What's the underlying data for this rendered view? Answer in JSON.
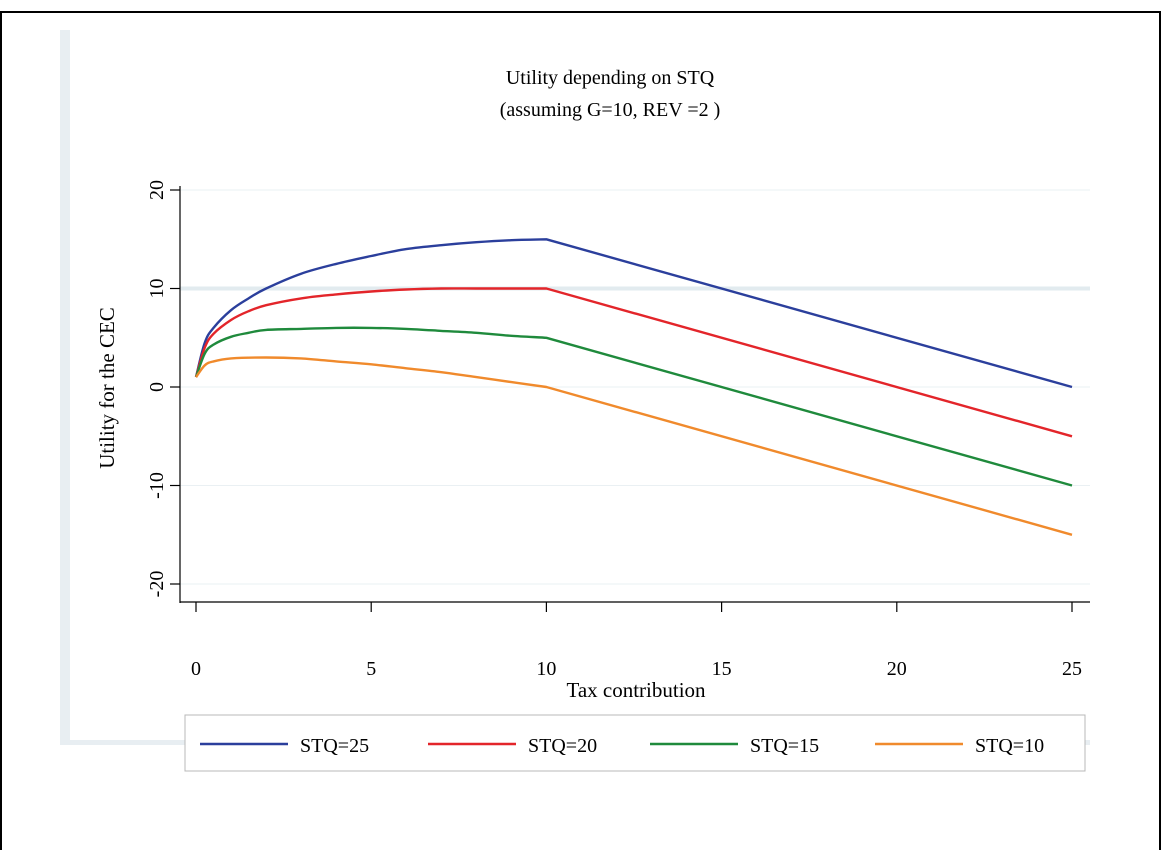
{
  "chart_data": {
    "type": "line",
    "title": "Utility depending on STQ",
    "subtitle": "(assuming G=10, REV =2 )",
    "xlabel": "Tax contribution",
    "ylabel": "Utility for the CEC",
    "xlim": [
      0,
      25
    ],
    "ylim": [
      -20,
      20
    ],
    "xticks": [
      0,
      5,
      10,
      15,
      20,
      25
    ],
    "yticks": [
      -20,
      -10,
      0,
      10,
      20
    ],
    "grid": true,
    "legend_placement": "bottom",
    "series": [
      {
        "name": "STQ=25",
        "color": "#2b3f9c",
        "points": [
          [
            0,
            1
          ],
          [
            0.25,
            4.5
          ],
          [
            0.5,
            6
          ],
          [
            1,
            7.8
          ],
          [
            1.5,
            9
          ],
          [
            2,
            10
          ],
          [
            3,
            11.5
          ],
          [
            4,
            12.5
          ],
          [
            5,
            13.3
          ],
          [
            6,
            14
          ],
          [
            7,
            14.4
          ],
          [
            8,
            14.7
          ],
          [
            9,
            14.9
          ],
          [
            10,
            15
          ],
          [
            25,
            0
          ]
        ]
      },
      {
        "name": "STQ=20",
        "color": "#e3252a",
        "points": [
          [
            0,
            1
          ],
          [
            0.25,
            4
          ],
          [
            0.5,
            5.4
          ],
          [
            1,
            6.8
          ],
          [
            1.5,
            7.7
          ],
          [
            2,
            8.3
          ],
          [
            3,
            9
          ],
          [
            4,
            9.4
          ],
          [
            5,
            9.7
          ],
          [
            6,
            9.9
          ],
          [
            7,
            10
          ],
          [
            8,
            10
          ],
          [
            9,
            10
          ],
          [
            10,
            10
          ],
          [
            25,
            -5
          ]
        ]
      },
      {
        "name": "STQ=15",
        "color": "#1f8a3c",
        "points": [
          [
            0,
            1
          ],
          [
            0.25,
            3.4
          ],
          [
            0.5,
            4.3
          ],
          [
            1,
            5.1
          ],
          [
            1.5,
            5.5
          ],
          [
            2,
            5.8
          ],
          [
            3,
            5.9
          ],
          [
            4,
            6
          ],
          [
            5,
            6
          ],
          [
            6,
            5.9
          ],
          [
            7,
            5.7
          ],
          [
            8,
            5.5
          ],
          [
            9,
            5.2
          ],
          [
            10,
            5
          ],
          [
            25,
            -10
          ]
        ]
      },
      {
        "name": "STQ=10",
        "color": "#f08a2c",
        "points": [
          [
            0,
            1
          ],
          [
            0.25,
            2.2
          ],
          [
            0.5,
            2.6
          ],
          [
            1,
            2.9
          ],
          [
            2,
            3
          ],
          [
            3,
            2.9
          ],
          [
            4,
            2.6
          ],
          [
            5,
            2.3
          ],
          [
            6,
            1.9
          ],
          [
            7,
            1.5
          ],
          [
            8,
            1
          ],
          [
            9,
            0.5
          ],
          [
            10,
            0
          ],
          [
            25,
            -15
          ]
        ]
      }
    ]
  }
}
